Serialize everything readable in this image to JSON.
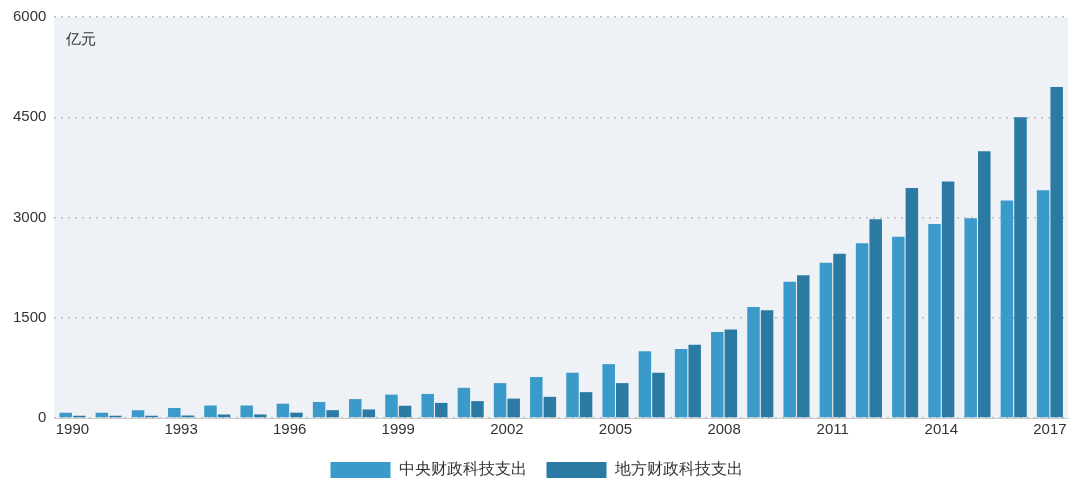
{
  "chart_data": {
    "type": "bar",
    "ylabel": "亿元",
    "categories": [
      "1990",
      null,
      null,
      "1993",
      null,
      null,
      "1996",
      null,
      null,
      "1999",
      null,
      null,
      "2002",
      null,
      null,
      "2005",
      null,
      null,
      "2008",
      null,
      null,
      "2011",
      null,
      null,
      "2014",
      null,
      null,
      "2017"
    ],
    "series": [
      {
        "name": "中央财政科技支出",
        "color": "#3a9ac9",
        "values": [
          80,
          80,
          117,
          150,
          187,
          187,
          214,
          240,
          283,
          350,
          360,
          452,
          522,
          613,
          677,
          806,
          1000,
          1032,
          1285,
          1660,
          2039,
          2322,
          2616,
          2712,
          2904,
          2989,
          3256,
          3406
        ]
      },
      {
        "name": "地方财政科技支出",
        "color": "#2a7aa3",
        "values": [
          32,
          32,
          32,
          37,
          53,
          53,
          80,
          117,
          128,
          183,
          226,
          253,
          290,
          317,
          387,
          522,
          677,
          1097,
          1323,
          1612,
          2135,
          2456,
          2973,
          3443,
          3539,
          3993,
          4500,
          4954
        ]
      }
    ],
    "ylim": [
      0,
      6000
    ],
    "yticks": [
      0,
      1500,
      3000,
      4500,
      6000
    ],
    "grid": "y",
    "legend": "bottom"
  }
}
